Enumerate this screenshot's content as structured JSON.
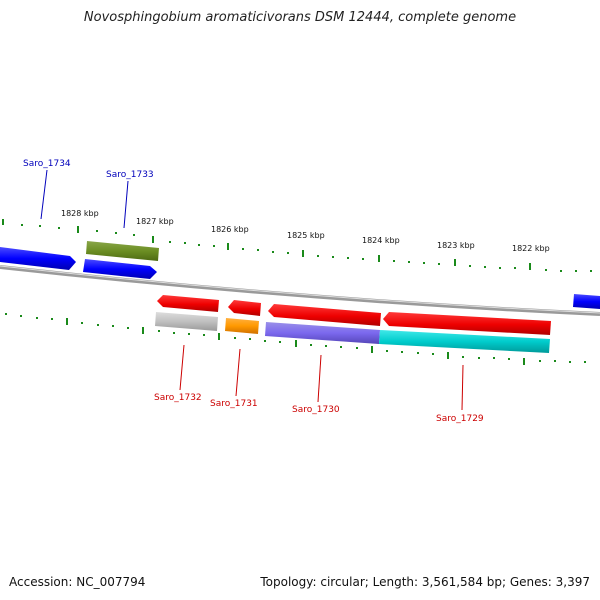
{
  "title": "Novosphingobium aromaticivorans DSM 12444, complete genome",
  "footer": {
    "accession": "Accession: NC_007794",
    "summary": "Topology: circular; Length: 3,561,584 bp; Genes: 3,397"
  },
  "colors": {
    "backbone": "#888888",
    "tick": "#1a8a1a",
    "upper_label": "#0000bb",
    "lower_label": "#cc0000"
  },
  "ticks": [
    "1828 kbp",
    "1827 kbp",
    "1826 kbp",
    "1825 kbp",
    "1824 kbp",
    "1823 kbp",
    "1822 kbp"
  ],
  "genes_upper": [
    {
      "label": "Saro_1734"
    },
    {
      "label": "Saro_1733"
    }
  ],
  "genes_lower": [
    {
      "label": "Saro_1732"
    },
    {
      "label": "Saro_1731"
    },
    {
      "label": "Saro_1730"
    },
    {
      "label": "Saro_1729"
    }
  ]
}
